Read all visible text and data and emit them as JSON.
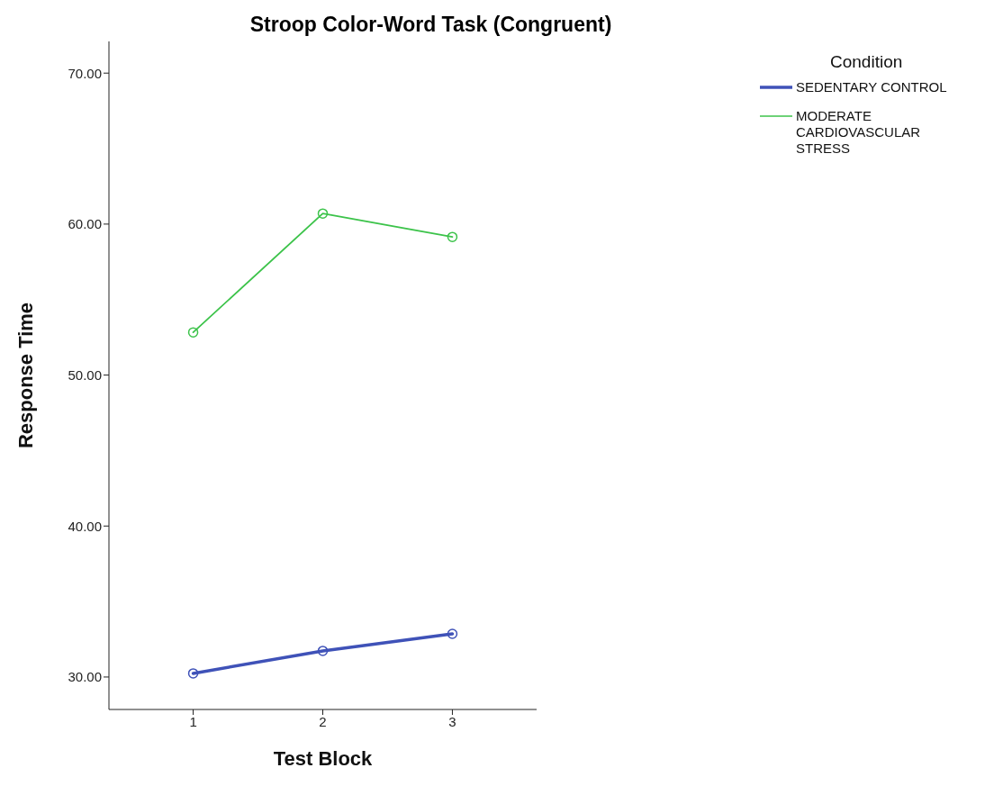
{
  "chart_data": {
    "type": "line",
    "title": "Stroop Color-Word Task (Congruent)",
    "xlabel": "Test Block",
    "ylabel": "Response Time",
    "legend_title": "Condition",
    "x": [
      1,
      2,
      3
    ],
    "xlim": [
      0.35,
      3.65
    ],
    "xticks": [
      1,
      2,
      3
    ],
    "ylim": [
      27.85,
      72.1
    ],
    "yticks": [
      {
        "value": 30,
        "label": "30.00"
      },
      {
        "value": 40,
        "label": "40.00"
      },
      {
        "value": 50,
        "label": "50.00"
      },
      {
        "value": 60,
        "label": "60.00"
      },
      {
        "value": 70,
        "label": "70.00"
      }
    ],
    "series": [
      {
        "name": "SEDENTARY CONTROL",
        "color": "#3f52b8",
        "values": [
          30.24,
          31.73,
          32.86
        ]
      },
      {
        "name": "MODERATE CARDIOVASCULAR STRESS",
        "color": "#3cc34a",
        "values": [
          52.83,
          60.7,
          59.15
        ]
      }
    ],
    "marker": "circle",
    "line_style": "solid",
    "grid": false,
    "legend": "top right"
  }
}
